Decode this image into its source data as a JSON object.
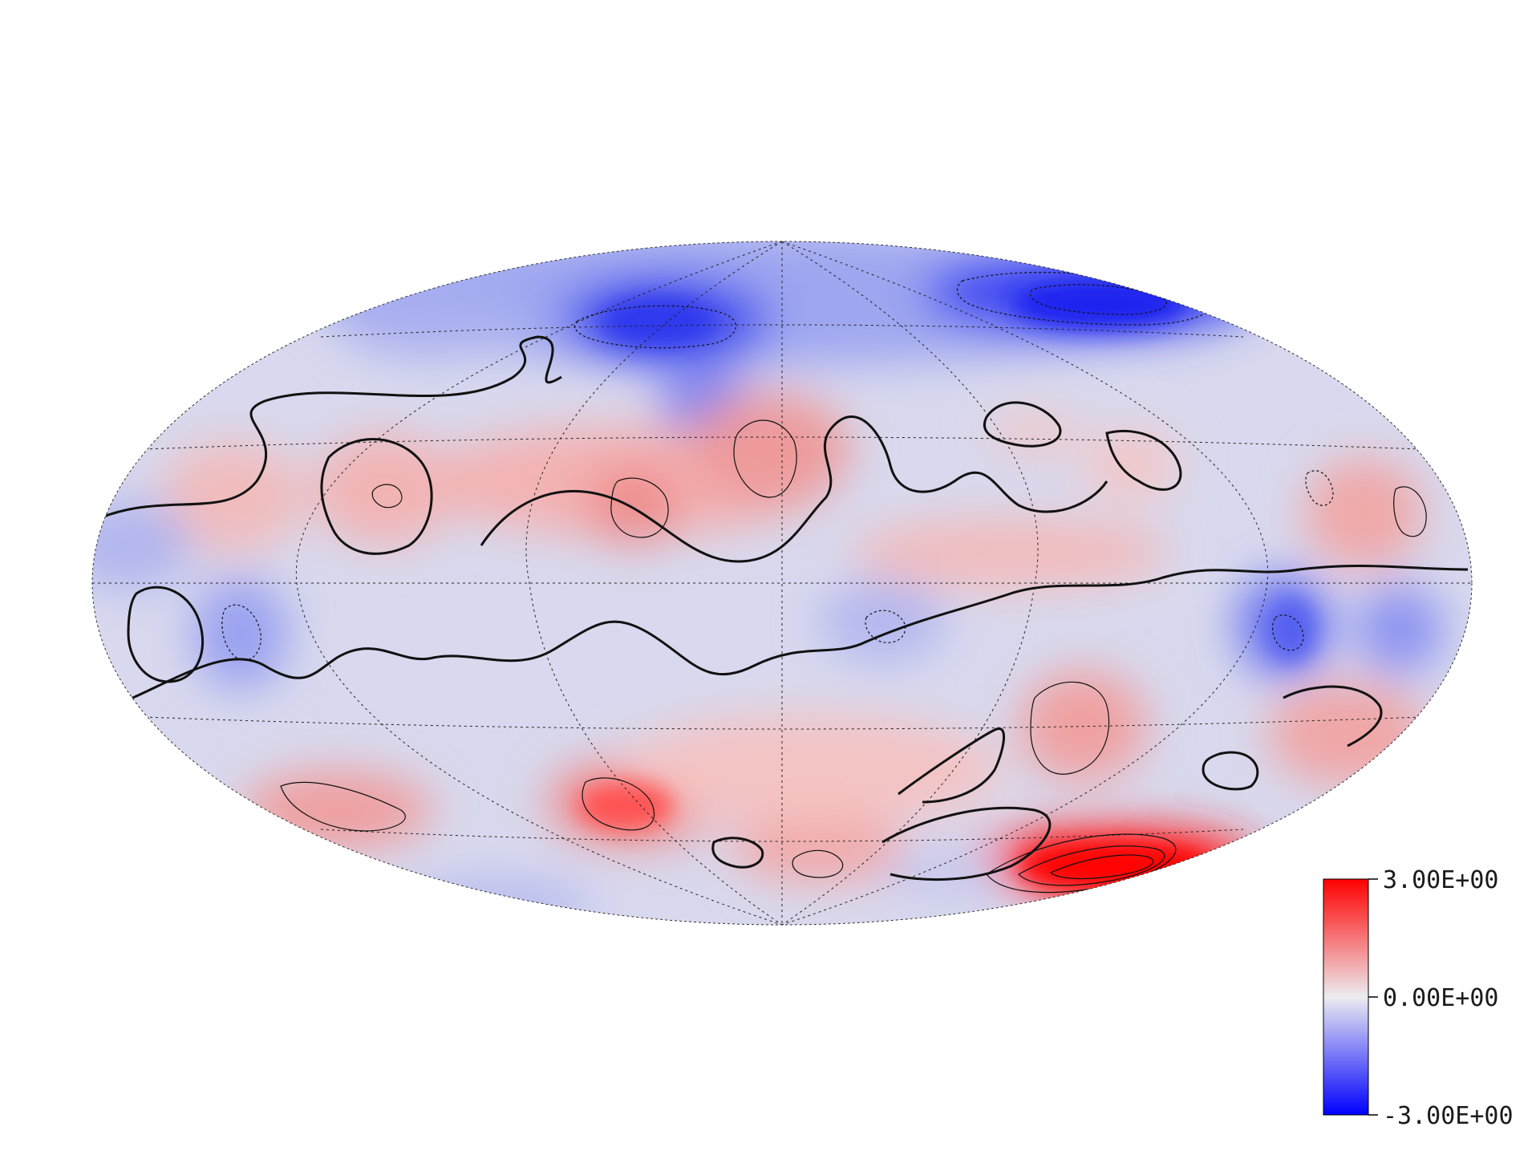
{
  "projection": "hammer-aitoff",
  "graticule": {
    "visible": true,
    "style": "dotted"
  },
  "contours": {
    "visible": true,
    "zero_contour_style": "thick-solid",
    "negative_style": "dotted",
    "positive_style": "solid"
  },
  "colorbar": {
    "placement": "bottom-right",
    "orientation": "vertical",
    "min": -3.0,
    "max": 3.0,
    "colors": {
      "max": "#ff0000",
      "mid": "#ececf0",
      "min": "#0000ff"
    },
    "ticks": [
      {
        "value": 3.0,
        "label": "3.00E+00"
      },
      {
        "value": 0.0,
        "label": "0.00E+00"
      },
      {
        "value": -3.0,
        "label": "-3.00E+00"
      }
    ]
  }
}
